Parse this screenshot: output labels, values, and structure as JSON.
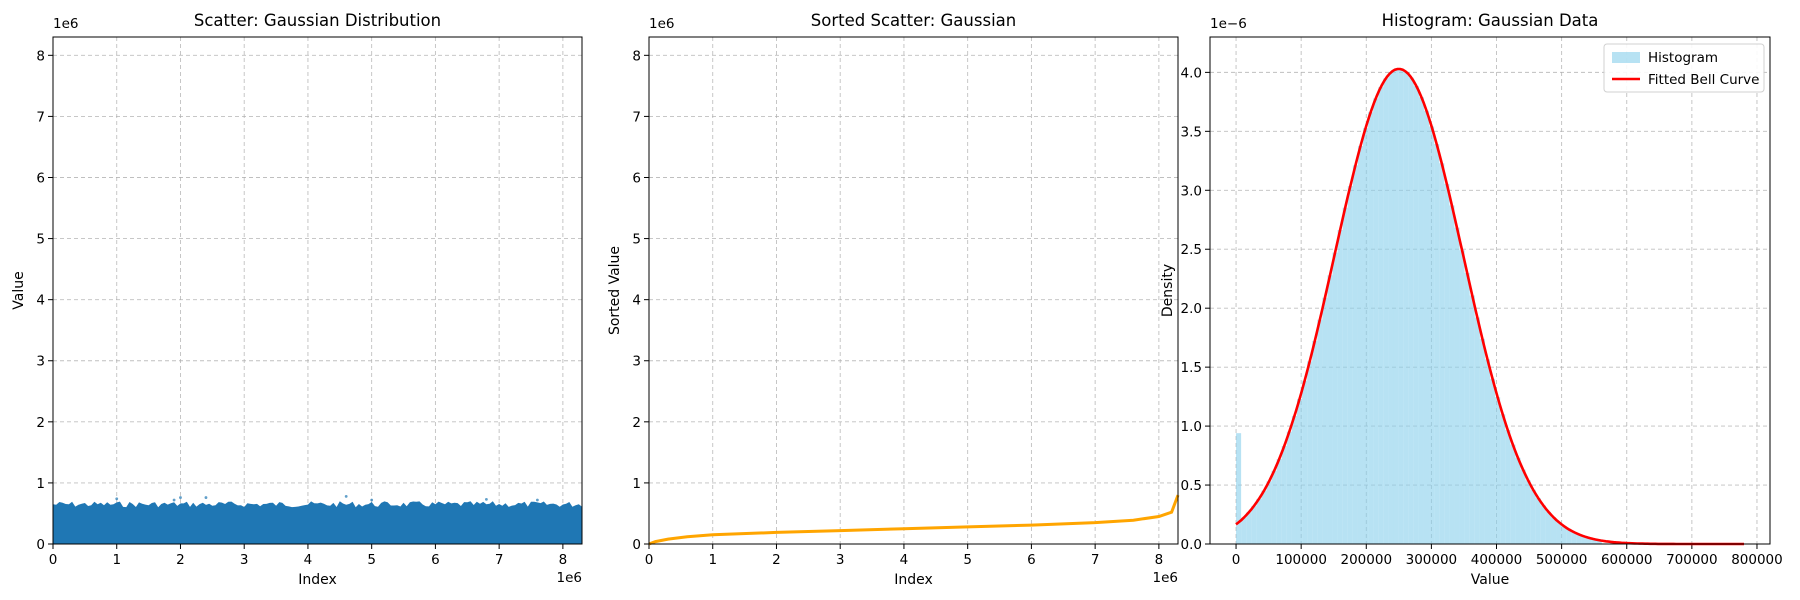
{
  "chart_data": [
    {
      "type": "scatter",
      "title": "Scatter: Gaussian Distribution",
      "xlabel": "Index",
      "ylabel": "Value",
      "x_offset_text": "1e6",
      "y_offset_text": "1e6",
      "xlim": [
        0,
        8.3
      ],
      "ylim": [
        0,
        8.3
      ],
      "x_ticks": [
        0,
        1,
        2,
        3,
        4,
        5,
        6,
        7,
        8
      ],
      "y_ticks": [
        0,
        1,
        2,
        3,
        4,
        5,
        6,
        7,
        8
      ],
      "x_tick_labels": [
        "0",
        "1",
        "2",
        "3",
        "4",
        "5",
        "6",
        "7",
        "8"
      ],
      "y_tick_labels": [
        "0",
        "1",
        "2",
        "3",
        "4",
        "5",
        "6",
        "7",
        "8"
      ],
      "grid": true,
      "band_upper": 0.65,
      "outliers": [
        [
          1.0,
          0.74
        ],
        [
          1.9,
          0.72
        ],
        [
          2.0,
          0.76
        ],
        [
          2.4,
          0.76
        ],
        [
          4.6,
          0.78
        ],
        [
          5.0,
          0.72
        ],
        [
          6.8,
          0.73
        ],
        [
          7.6,
          0.72
        ]
      ],
      "color": "#1f77b4"
    },
    {
      "type": "line",
      "title": "Sorted Scatter: Gaussian",
      "xlabel": "Index",
      "ylabel": "Sorted Value",
      "x_offset_text": "1e6",
      "y_offset_text": "1e6",
      "xlim": [
        0,
        8.3
      ],
      "ylim": [
        0,
        8.3
      ],
      "x_ticks": [
        0,
        1,
        2,
        3,
        4,
        5,
        6,
        7,
        8
      ],
      "y_ticks": [
        0,
        1,
        2,
        3,
        4,
        5,
        6,
        7,
        8
      ],
      "x_tick_labels": [
        "0",
        "1",
        "2",
        "3",
        "4",
        "5",
        "6",
        "7",
        "8"
      ],
      "y_tick_labels": [
        "0",
        "1",
        "2",
        "3",
        "4",
        "5",
        "6",
        "7",
        "8"
      ],
      "grid": true,
      "x": [
        0,
        0.1,
        0.3,
        0.6,
        1.0,
        2.0,
        3.0,
        4.0,
        5.0,
        6.0,
        7.0,
        7.6,
        8.0,
        8.2,
        8.3
      ],
      "y": [
        0.0,
        0.04,
        0.08,
        0.12,
        0.15,
        0.19,
        0.22,
        0.25,
        0.28,
        0.31,
        0.35,
        0.39,
        0.45,
        0.52,
        0.8
      ],
      "color": "#ffa500"
    },
    {
      "type": "bar",
      "title": "Histogram: Gaussian Data",
      "xlabel": "Value",
      "ylabel": "Density",
      "y_offset_text": "1e−6",
      "xlim": [
        -40000,
        820000
      ],
      "ylim": [
        0,
        4.3
      ],
      "x_ticks": [
        0,
        100000,
        200000,
        300000,
        400000,
        500000,
        600000,
        700000,
        800000
      ],
      "x_tick_labels": [
        "0",
        "100000",
        "200000",
        "300000",
        "400000",
        "500000",
        "600000",
        "700000",
        "800000"
      ],
      "y_ticks": [
        0,
        0.5,
        1.0,
        1.5,
        2.0,
        2.5,
        3.0,
        3.5,
        4.0
      ],
      "y_tick_labels": [
        "0.0",
        "0.5",
        "1.0",
        "1.5",
        "2.0",
        "2.5",
        "3.0",
        "3.5",
        "4.0"
      ],
      "grid": true,
      "legend": {
        "position": "top-right",
        "entries": [
          "Histogram",
          "Fitted Bell Curve"
        ]
      },
      "series": [
        {
          "name": "Histogram",
          "spike": {
            "x_min": 0,
            "x_max": 7800,
            "density": 0.94
          },
          "mean": 250000,
          "std": 99000,
          "color": "#87ceeb"
        },
        {
          "name": "Fitted Bell Curve",
          "mean": 250000,
          "std": 99000,
          "x_range": [
            0,
            780000
          ],
          "color": "#ff0000"
        }
      ]
    }
  ]
}
